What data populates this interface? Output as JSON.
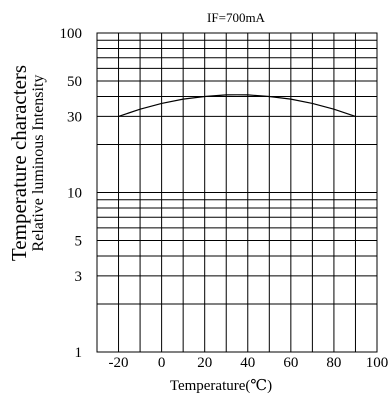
{
  "chart_data": {
    "type": "line",
    "title": "IF=700mA",
    "xlabel": "Temperature(℃)",
    "ylabel": "Temperature characters",
    "ylabel2": "Relative luminous Intensity",
    "xlim": [
      -30,
      100
    ],
    "ylim": [
      1,
      100
    ],
    "yscale": "log",
    "grid": true,
    "x_ticks": [
      -20,
      0,
      20,
      40,
      60,
      80,
      100
    ],
    "x_tick_labels": [
      "-20",
      "0",
      "20",
      "40",
      "60",
      "80",
      "100"
    ],
    "y_ticks": [
      1,
      3,
      5,
      10,
      30,
      50,
      100
    ],
    "y_tick_labels": [
      "1",
      "3",
      "5",
      "10",
      "30",
      "50",
      "100"
    ],
    "series": [
      {
        "x": [
          -20,
          -10,
          0,
          10,
          20,
          30,
          35,
          40,
          50,
          60,
          70,
          80,
          90
        ],
        "y": [
          30,
          33.3,
          36.2,
          38.5,
          40,
          40.9,
          41.0,
          40.9,
          40,
          38.5,
          36.2,
          33.3,
          30
        ]
      }
    ]
  }
}
